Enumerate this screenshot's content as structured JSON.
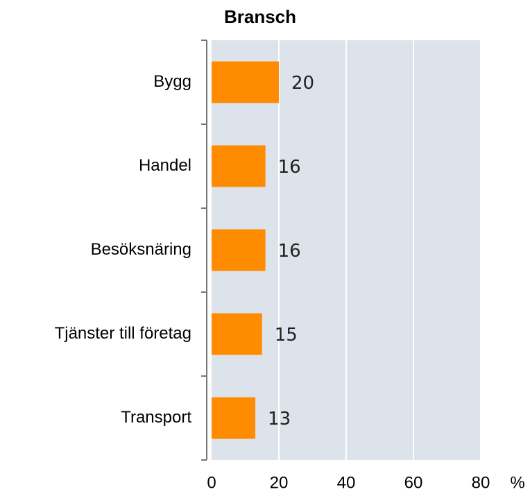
{
  "chart_data": {
    "type": "bar",
    "orientation": "horizontal",
    "title": "Bransch",
    "categories": [
      "Bygg",
      "Handel",
      "Besöksnäring",
      "Tjänster till företag",
      "Transport"
    ],
    "values": [
      20,
      16,
      16,
      15,
      13
    ],
    "color": "#ff8c00",
    "xlim": [
      0,
      80
    ],
    "xticks": [
      0,
      20,
      40,
      60,
      80
    ],
    "x_label": "%",
    "grid": true
  }
}
